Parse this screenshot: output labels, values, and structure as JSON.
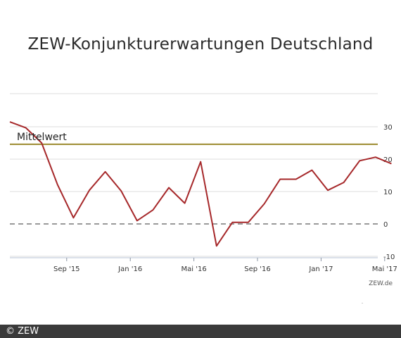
{
  "title": "ZEW-Konjunkturerwartungen Deutschland",
  "credit": "ZEW.de",
  "copyright": "© ZEW",
  "colors": {
    "line": "#a6282a",
    "mean": "#9b8a2e",
    "zero": "#999999",
    "grid": "#dddddd",
    "text": "#333333"
  },
  "chart_data": {
    "type": "line",
    "title": "ZEW-Konjunkturerwartungen Deutschland",
    "xlabel": "",
    "ylabel": "",
    "ylim": [
      -10,
      30
    ],
    "yticks": [
      30,
      20,
      10,
      0,
      -10
    ],
    "ytick_labels": [
      "30",
      "20",
      "10",
      "0",
      "-10"
    ],
    "grid": true,
    "xtick_labels": [
      "Sep '15",
      "Jan '16",
      "Mai '16",
      "Sep '16",
      "Jan '17",
      "Mai '17"
    ],
    "x": [
      "2015-06",
      "2015-07",
      "2015-08",
      "2015-09",
      "2015-10",
      "2015-11",
      "2015-12",
      "2016-01",
      "2016-02",
      "2016-03",
      "2016-04",
      "2016-05",
      "2016-06",
      "2016-07",
      "2016-08",
      "2016-09",
      "2016-10",
      "2016-11",
      "2016-12",
      "2017-01",
      "2017-02",
      "2017-03",
      "2017-04",
      "2017-05",
      "2017-06"
    ],
    "series": [
      {
        "values": [
          31.5,
          29.7,
          25.0,
          12.1,
          1.9,
          10.4,
          16.1,
          10.2,
          1.0,
          4.3,
          11.2,
          6.4,
          19.2,
          -6.8,
          0.5,
          0.5,
          6.2,
          13.8,
          13.8,
          16.6,
          10.4,
          12.8,
          19.5,
          20.6,
          18.6
        ]
      }
    ],
    "mean_line": {
      "label": "Mittelwert",
      "value": 24.6
    },
    "reference_line": {
      "value": 0,
      "style": "dashed"
    }
  }
}
